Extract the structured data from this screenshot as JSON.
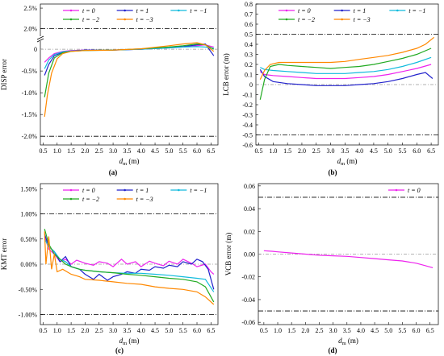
{
  "chart_data": [
    {
      "id": "a",
      "type": "line",
      "caption": "(a)",
      "xlabel_main": "d",
      "xlabel_sub": "m",
      "xlabel_unit": " (m)",
      "ylabel": "DISP error",
      "xlim": [
        0.4,
        6.75
      ],
      "y_split": true,
      "upper": {
        "ticks": [
          "2.5%",
          "2.0%"
        ],
        "tick_values": [
          2.5,
          2.0
        ],
        "ylim": [
          1.85,
          2.6
        ]
      },
      "lower": {
        "ticks": [
          "0",
          "-0.5%",
          "-1.0%",
          "-1.5%",
          "-2.0%"
        ],
        "tick_values": [
          0,
          -0.5,
          -1.0,
          -1.5,
          -2.0
        ],
        "ylim": [
          -2.2,
          0.15
        ]
      },
      "x_ticks": [
        "0.5",
        "1.0",
        "1.5",
        "2.0",
        "2.5",
        "3.0",
        "3.5",
        "4.0",
        "4.5",
        "5.0",
        "5.5",
        "6.0",
        "6.5"
      ],
      "ref_lines": [
        {
          "y": 2.0,
          "panel": "upper",
          "style": "dashdot",
          "color": "#000000"
        },
        {
          "y": -2.0,
          "panel": "lower",
          "style": "dashdot",
          "color": "#000000"
        },
        {
          "y": 0,
          "panel": "lower",
          "style": "dashdot-light",
          "color": "#999999"
        }
      ],
      "legend": {
        "placement": "top",
        "columns": 3
      },
      "series": [
        {
          "name": "t = 0",
          "color": "#ee22ee",
          "x": [
            0.55,
            0.7,
            0.9,
            1.2,
            1.5,
            2.0,
            3.0,
            4.0,
            5.0,
            5.5,
            6.0,
            6.3,
            6.6
          ],
          "y": [
            -0.3,
            -0.2,
            -0.1,
            -0.05,
            -0.03,
            -0.02,
            -0.02,
            0.0,
            0.03,
            0.05,
            0.08,
            0.1,
            0.05
          ]
        },
        {
          "name": "t = 1",
          "color": "#2222cc",
          "x": [
            0.55,
            0.7,
            0.9,
            1.2,
            1.5,
            2.0,
            3.0,
            4.0,
            5.0,
            5.5,
            6.0,
            6.3,
            6.6
          ],
          "y": [
            -0.6,
            -0.35,
            -0.15,
            -0.07,
            -0.04,
            -0.02,
            -0.02,
            0.0,
            0.04,
            0.06,
            0.1,
            0.12,
            -0.15
          ]
        },
        {
          "name": "t = −1",
          "color": "#11bbdd",
          "x": [
            0.55,
            0.7,
            0.9,
            1.2,
            1.5,
            2.0,
            3.0,
            4.0,
            5.0,
            5.5,
            6.0,
            6.3,
            6.6
          ],
          "y": [
            -0.45,
            -0.25,
            -0.12,
            -0.06,
            -0.04,
            -0.03,
            -0.02,
            0.0,
            0.03,
            0.05,
            0.06,
            0.05,
            0.02
          ]
        },
        {
          "name": "t = −2",
          "color": "#22aa22",
          "x": [
            0.55,
            0.7,
            0.9,
            1.2,
            1.5,
            2.0,
            3.0,
            4.0,
            5.0,
            5.5,
            6.0,
            6.3,
            6.6
          ],
          "y": [
            -1.1,
            -0.55,
            -0.2,
            -0.08,
            -0.05,
            -0.03,
            -0.02,
            0.01,
            0.05,
            0.08,
            0.12,
            0.1,
            0.0
          ]
        },
        {
          "name": "t = −3",
          "color": "#ff8800",
          "x": [
            0.55,
            0.65,
            0.8,
            1.0,
            1.2,
            1.5,
            2.0,
            3.0,
            4.0,
            5.0,
            5.5,
            6.0,
            6.3,
            6.6
          ],
          "y": [
            -1.55,
            -1.05,
            -0.55,
            -0.22,
            -0.1,
            -0.05,
            -0.03,
            -0.02,
            0.01,
            0.08,
            0.12,
            0.15,
            0.1,
            -0.05
          ]
        }
      ]
    },
    {
      "id": "b",
      "type": "line",
      "caption": "(b)",
      "xlabel_main": "d",
      "xlabel_sub": "m",
      "xlabel_unit": " (m)",
      "ylabel": "LCB error (m)",
      "xlim": [
        0.4,
        6.75
      ],
      "ylim": [
        -0.6,
        0.8
      ],
      "y_ticks": [
        "0.8",
        "0.7",
        "0.6",
        "0.5",
        "0.4",
        "0.3",
        "0.2",
        "0.1",
        "0",
        "-0.1",
        "-0.2",
        "-0.3",
        "-0.4",
        "-0.5",
        "-0.6"
      ],
      "y_tick_values": [
        0.8,
        0.7,
        0.6,
        0.5,
        0.4,
        0.3,
        0.2,
        0.1,
        0,
        -0.1,
        -0.2,
        -0.3,
        -0.4,
        -0.5,
        -0.6
      ],
      "x_ticks": [
        "0.5",
        "1.0",
        "1.5",
        "2.0",
        "2.5",
        "3.0",
        "3.5",
        "4.0",
        "4.5",
        "5.0",
        "5.5",
        "6.0",
        "6.5"
      ],
      "ref_lines": [
        {
          "y": 0.5,
          "style": "dashdot",
          "color": "#000000"
        },
        {
          "y": -0.5,
          "style": "dashdot",
          "color": "#000000"
        },
        {
          "y": 0,
          "style": "dashdot-light",
          "color": "#999999"
        }
      ],
      "legend": {
        "placement": "top",
        "columns": 3
      },
      "series": [
        {
          "name": "t = 0",
          "color": "#ee22ee",
          "x": [
            0.55,
            0.7,
            1.0,
            1.5,
            2.0,
            2.5,
            3.0,
            3.5,
            4.0,
            4.5,
            5.0,
            5.5,
            6.0,
            6.5
          ],
          "y": [
            0.13,
            0.1,
            0.09,
            0.08,
            0.07,
            0.06,
            0.06,
            0.06,
            0.07,
            0.08,
            0.1,
            0.13,
            0.16,
            0.2
          ]
        },
        {
          "name": "t = 1",
          "color": "#2222cc",
          "x": [
            0.55,
            0.7,
            1.0,
            1.5,
            2.0,
            2.5,
            3.0,
            3.5,
            4.0,
            4.5,
            5.0,
            5.5,
            6.0,
            6.3,
            6.55
          ],
          "y": [
            0.15,
            0.08,
            0.03,
            0.01,
            0.0,
            -0.01,
            -0.01,
            -0.01,
            0.0,
            0.01,
            0.03,
            0.06,
            0.1,
            0.12,
            0.06
          ]
        },
        {
          "name": "t = −1",
          "color": "#11bbdd",
          "x": [
            0.55,
            0.7,
            1.0,
            1.5,
            2.0,
            2.5,
            3.0,
            3.5,
            4.0,
            4.5,
            5.0,
            5.5,
            6.0,
            6.5
          ],
          "y": [
            0.17,
            0.15,
            0.14,
            0.13,
            0.12,
            0.11,
            0.11,
            0.11,
            0.12,
            0.13,
            0.15,
            0.18,
            0.22,
            0.27
          ]
        },
        {
          "name": "t = −2",
          "color": "#22aa22",
          "x": [
            0.55,
            0.7,
            0.9,
            1.2,
            1.5,
            2.0,
            2.5,
            3.0,
            3.5,
            4.0,
            4.5,
            5.0,
            5.5,
            6.0,
            6.5
          ],
          "y": [
            -0.15,
            0.05,
            0.18,
            0.2,
            0.19,
            0.18,
            0.17,
            0.16,
            0.17,
            0.18,
            0.2,
            0.23,
            0.26,
            0.3,
            0.36
          ]
        },
        {
          "name": "t = −3",
          "color": "#ff8800",
          "x": [
            0.55,
            0.7,
            0.9,
            1.2,
            1.5,
            2.0,
            2.5,
            3.0,
            3.5,
            4.0,
            4.5,
            5.0,
            5.5,
            6.0,
            6.3,
            6.6
          ],
          "y": [
            0.05,
            0.14,
            0.2,
            0.22,
            0.22,
            0.22,
            0.22,
            0.22,
            0.23,
            0.25,
            0.27,
            0.29,
            0.32,
            0.36,
            0.4,
            0.47
          ]
        }
      ]
    },
    {
      "id": "c",
      "type": "line",
      "caption": "(c)",
      "xlabel_main": "d",
      "xlabel_sub": "m",
      "xlabel_unit": " (m)",
      "ylabel": "KMT error",
      "xlim": [
        0.4,
        6.75
      ],
      "ylim": [
        -1.2,
        1.6
      ],
      "y_ticks": [
        "1.50%",
        "1.00%",
        "0.50%",
        "0.00%",
        "-0.50%",
        "-1.00%"
      ],
      "y_tick_values": [
        1.5,
        1.0,
        0.5,
        0.0,
        -0.5,
        -1.0
      ],
      "x_ticks": [
        "0.5",
        "1.0",
        "1.5",
        "2.0",
        "2.5",
        "3.0",
        "3.5",
        "4.0",
        "4.5",
        "5.0",
        "5.5",
        "6.0",
        "6.5"
      ],
      "ref_lines": [
        {
          "y": 1.0,
          "style": "dashdot",
          "color": "#000000"
        },
        {
          "y": -1.0,
          "style": "dashdot",
          "color": "#000000"
        },
        {
          "y": 0,
          "style": "dashdot-light",
          "color": "#999999"
        }
      ],
      "legend": {
        "placement": "top",
        "columns": 3
      },
      "series": [
        {
          "name": "t = 0",
          "color": "#ee22ee",
          "x": [
            0.55,
            0.7,
            0.9,
            1.1,
            1.3,
            1.5,
            1.7,
            2.0,
            2.3,
            2.5,
            2.8,
            3.0,
            3.3,
            3.5,
            3.8,
            4.0,
            4.3,
            4.5,
            4.8,
            5.0,
            5.3,
            5.5,
            5.8,
            6.0,
            6.3,
            6.5,
            6.6
          ],
          "y": [
            0.55,
            0.3,
            0.2,
            0.05,
            0.1,
            0.0,
            0.08,
            0.02,
            -0.02,
            0.05,
            0.02,
            -0.05,
            0.1,
            0.0,
            0.05,
            -0.05,
            0.06,
            0.02,
            -0.03,
            0.06,
            0.0,
            0.1,
            0.02,
            -0.05,
            0.0,
            -0.15,
            -0.2
          ]
        },
        {
          "name": "t = 1",
          "color": "#2222cc",
          "x": [
            0.55,
            0.7,
            0.9,
            1.1,
            1.3,
            1.5,
            1.8,
            2.0,
            2.3,
            2.5,
            2.8,
            3.0,
            3.3,
            3.5,
            3.8,
            4.0,
            4.3,
            4.5,
            4.8,
            5.0,
            5.3,
            5.5,
            5.8,
            6.0,
            6.2,
            6.4,
            6.6
          ],
          "y": [
            0.6,
            0.35,
            0.25,
            0.05,
            0.15,
            -0.05,
            -0.1,
            -0.2,
            -0.3,
            -0.2,
            -0.32,
            -0.25,
            -0.2,
            -0.15,
            -0.18,
            -0.1,
            -0.12,
            -0.05,
            -0.08,
            -0.02,
            -0.05,
            0.05,
            0.0,
            0.1,
            0.05,
            -0.1,
            -0.5
          ]
        },
        {
          "name": "t = −1",
          "color": "#11bbdd",
          "x": [
            0.55,
            0.7,
            0.9,
            1.1,
            1.3,
            1.5,
            1.8,
            2.0,
            2.5,
            3.0,
            3.5,
            4.0,
            4.5,
            5.0,
            5.5,
            6.0,
            6.3,
            6.6
          ],
          "y": [
            0.5,
            0.35,
            0.25,
            0.1,
            0.05,
            -0.05,
            -0.1,
            -0.12,
            -0.15,
            -0.17,
            -0.18,
            -0.18,
            -0.2,
            -0.22,
            -0.25,
            -0.28,
            -0.3,
            -0.55
          ]
        },
        {
          "name": "t = −2",
          "color": "#22aa22",
          "x": [
            0.55,
            0.7,
            0.9,
            1.1,
            1.3,
            1.5,
            1.8,
            2.0,
            2.5,
            3.0,
            3.5,
            4.0,
            4.5,
            5.0,
            5.5,
            6.0,
            6.3,
            6.6
          ],
          "y": [
            0.7,
            0.4,
            0.2,
            0.1,
            0.0,
            -0.05,
            -0.1,
            -0.12,
            -0.15,
            -0.17,
            -0.2,
            -0.22,
            -0.25,
            -0.28,
            -0.3,
            -0.35,
            -0.45,
            -0.75
          ]
        },
        {
          "name": "t = −3",
          "color": "#ff8800",
          "x": [
            0.55,
            0.6,
            0.7,
            0.8,
            0.9,
            1.0,
            1.2,
            1.5,
            1.8,
            2.0,
            2.5,
            3.0,
            3.5,
            4.0,
            4.5,
            5.0,
            5.5,
            6.0,
            6.3,
            6.6
          ],
          "y": [
            0.65,
            0.0,
            0.55,
            -0.1,
            0.2,
            -0.15,
            -0.1,
            -0.2,
            -0.25,
            -0.3,
            -0.32,
            -0.35,
            -0.38,
            -0.4,
            -0.45,
            -0.48,
            -0.5,
            -0.55,
            -0.65,
            -0.8
          ]
        }
      ]
    },
    {
      "id": "d",
      "type": "line",
      "caption": "(d)",
      "xlabel_main": "d",
      "xlabel_sub": "m",
      "xlabel_unit": " (m)",
      "ylabel": "VCB error (m)",
      "xlim": [
        0.3,
        6.8
      ],
      "ylim": [
        -0.062,
        0.062
      ],
      "y_ticks": [
        "0.06",
        "0.04",
        "0.02",
        "0.00",
        "-0.02",
        "-0.04",
        "-0.06"
      ],
      "y_tick_values": [
        0.06,
        0.04,
        0.02,
        0.0,
        -0.02,
        -0.04,
        -0.06
      ],
      "x_ticks": [
        "0.5",
        "1.0",
        "1.5",
        "2.0",
        "2.5",
        "3.0",
        "3.5",
        "4.0",
        "4.5",
        "5.0",
        "5.5",
        "6.0",
        "6.5"
      ],
      "ref_lines": [
        {
          "y": 0.05,
          "style": "dashdot",
          "color": "#000000"
        },
        {
          "y": -0.05,
          "style": "dashdot",
          "color": "#000000"
        },
        {
          "y": 0,
          "style": "dashdot-light",
          "color": "#999999"
        }
      ],
      "legend": {
        "placement": "top-right",
        "columns": 1
      },
      "series": [
        {
          "name": "t = 0",
          "color": "#ee22ee",
          "x": [
            0.5,
            0.8,
            1.0,
            1.5,
            2.0,
            2.5,
            3.0,
            3.5,
            4.0,
            4.5,
            5.0,
            5.5,
            6.0,
            6.3,
            6.6
          ],
          "y": [
            0.003,
            0.0025,
            0.002,
            0.001,
            0.0,
            -0.001,
            -0.0015,
            -0.002,
            -0.003,
            -0.004,
            -0.005,
            -0.006,
            -0.008,
            -0.01,
            -0.012
          ]
        }
      ]
    }
  ]
}
